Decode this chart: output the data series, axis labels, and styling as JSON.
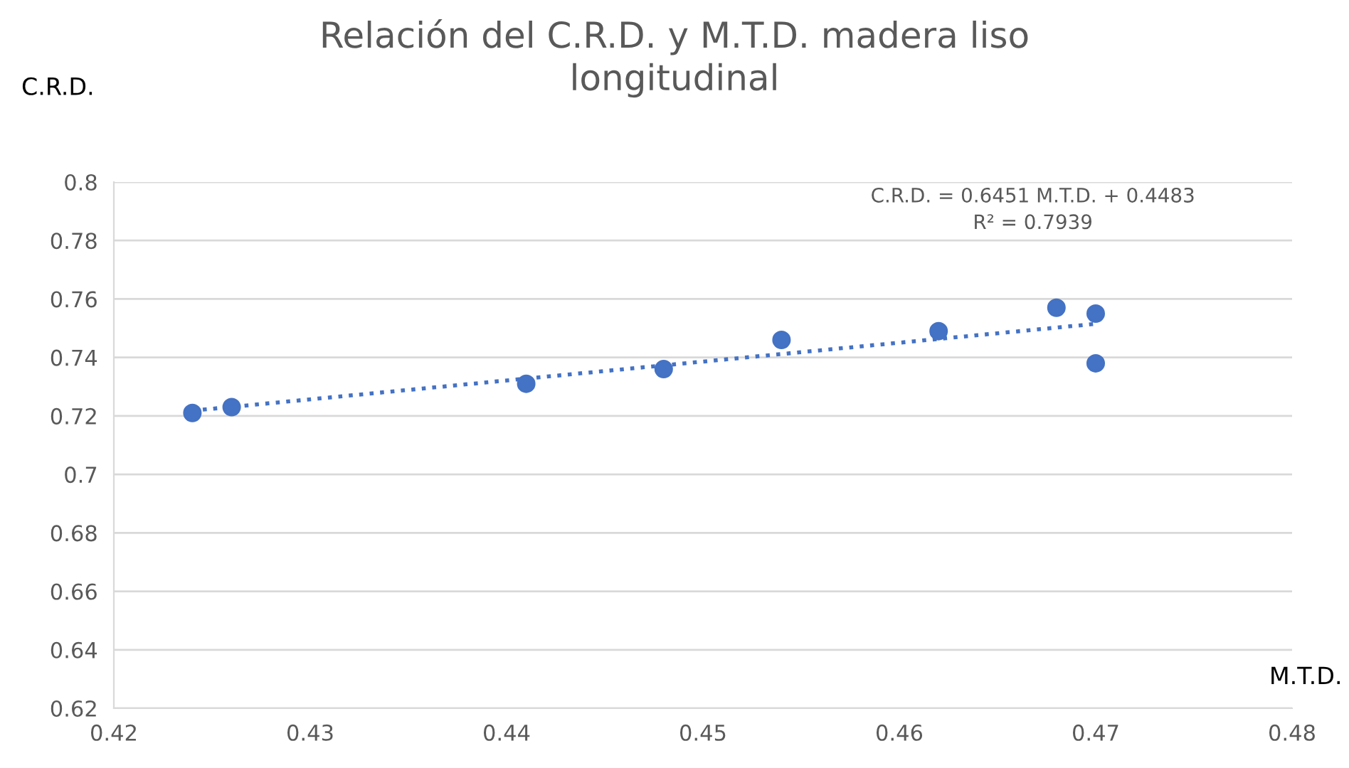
{
  "chart_data": {
    "type": "scatter",
    "title": "Relación del C.R.D. y M.T.D. madera liso\nlongitudinal",
    "xlabel": "M.T.D.",
    "ylabel": "C.R.D.",
    "series": [
      {
        "color": "#4472c4",
        "marker": "circle",
        "x": [
          0.424,
          0.426,
          0.441,
          0.448,
          0.454,
          0.462,
          0.468,
          0.47,
          0.47
        ],
        "values": [
          0.721,
          0.723,
          0.731,
          0.736,
          0.746,
          0.749,
          0.757,
          0.755,
          0.738
        ]
      },
      {
        "type": "line",
        "color": "#4472c4",
        "line_style": "dotted",
        "x": [
          0.424,
          0.47
        ],
        "values": [
          0.7218,
          0.7515
        ]
      }
    ],
    "annotations": [
      "C.R.D. = 0.6451 M.T.D. + 0.4483\nR² = 0.7939"
    ],
    "xlim": [
      0.42,
      0.48
    ],
    "xticks": [
      0.42,
      0.43,
      0.44,
      0.45,
      0.46,
      0.47,
      0.48
    ],
    "ylim": [
      0.62,
      0.8
    ],
    "yticks": [
      0.62,
      0.64,
      0.66,
      0.68,
      0.7,
      0.72,
      0.74,
      0.76,
      0.78,
      0.8
    ],
    "grid": "y",
    "legend": false
  }
}
